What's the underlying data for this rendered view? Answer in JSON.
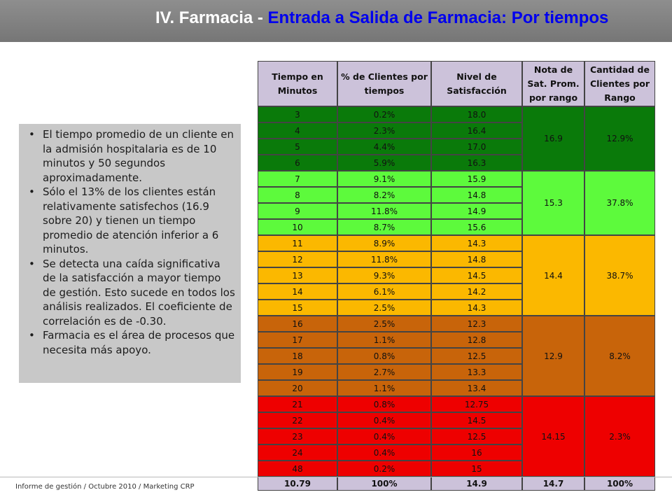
{
  "header": {
    "title_prefix": "IV. Farmacia - ",
    "title_accent": "Entrada a Salida de Farmacia: Por tiempos"
  },
  "notes": [
    "El tiempo promedio de un cliente en la admisión hospitalaria es de 10 minutos y 50 segundos aproximadamente.",
    "Sólo el 13% de los clientes están relativamente  satisfechos (16.9 sobre 20) y tienen un tiempo promedio de atención inferior a 6 minutos.",
    "Se detecta una caída significativa de la satisfacción a mayor tiempo de gestión.  Esto sucede en todos los análisis realizados. El coeficiente de correlación es de -0.30.",
    "Farmacia es el área de procesos que necesita más apoyo."
  ],
  "footer": "Informe de gestión / Octubre 2010 / Marketing CRP",
  "table": {
    "headers": [
      "Tiempo en Minutos",
      "% de Clientes por tiempos",
      "Nivel de Satisfacción",
      "Nota de Sat. Prom. por rango",
      "Cantidad de Clientes por Rango"
    ],
    "groups": [
      {
        "color": "#0a7a0a",
        "avg_score": "16.9",
        "range_share": "12.9%",
        "rows": [
          [
            "3",
            "0.2%",
            "18.0"
          ],
          [
            "4",
            "2.3%",
            "16.4"
          ],
          [
            "5",
            "4.4%",
            "17.0"
          ],
          [
            "6",
            "5.9%",
            "16.3"
          ]
        ]
      },
      {
        "color": "#5dfa3c",
        "avg_score": "15.3",
        "range_share": "37.8%",
        "rows": [
          [
            "7",
            "9.1%",
            "15.9"
          ],
          [
            "8",
            "8.2%",
            "14.8"
          ],
          [
            "9",
            "11.8%",
            "14.9"
          ],
          [
            "10",
            "8.7%",
            "15.6"
          ]
        ]
      },
      {
        "color": "#fbb800",
        "avg_score": "14.4",
        "range_share": "38.7%",
        "rows": [
          [
            "11",
            "8.9%",
            "14.3"
          ],
          [
            "12",
            "11.8%",
            "14.8"
          ],
          [
            "13",
            "9.3%",
            "14.5"
          ],
          [
            "14",
            "6.1%",
            "14.2"
          ],
          [
            "15",
            "2.5%",
            "14.3"
          ]
        ]
      },
      {
        "color": "#c8640a",
        "avg_score": "12.9",
        "range_share": "8.2%",
        "rows": [
          [
            "16",
            "2.5%",
            "12.3"
          ],
          [
            "17",
            "1.1%",
            "12.8"
          ],
          [
            "18",
            "0.8%",
            "12.5"
          ],
          [
            "19",
            "2.7%",
            "13.3"
          ],
          [
            "20",
            "1.1%",
            "13.4"
          ]
        ]
      },
      {
        "color": "#ee0000",
        "avg_score": "14.15",
        "range_share": "2.3%",
        "rows": [
          [
            "21",
            "0.8%",
            "12.75"
          ],
          [
            "22",
            "0.4%",
            "14.5"
          ],
          [
            "23",
            "0.4%",
            "12.5"
          ],
          [
            "24",
            "0.4%",
            "16"
          ],
          [
            "48",
            "0.2%",
            "15"
          ]
        ]
      }
    ],
    "totals": [
      "10.79",
      "100%",
      "14.9",
      "14.7",
      "100%"
    ]
  }
}
